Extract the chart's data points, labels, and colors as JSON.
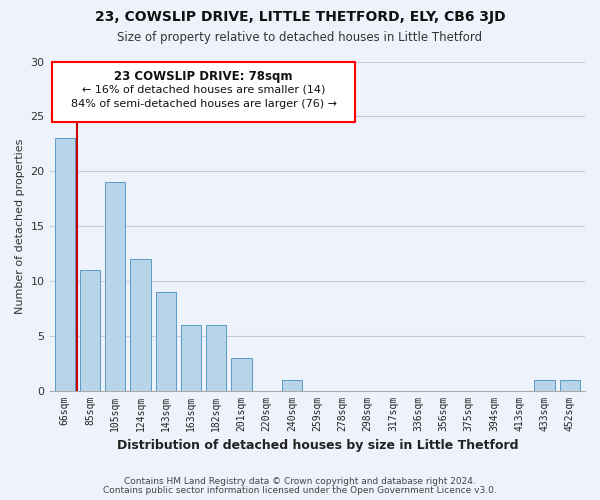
{
  "title": "23, COWSLIP DRIVE, LITTLE THETFORD, ELY, CB6 3JD",
  "subtitle": "Size of property relative to detached houses in Little Thetford",
  "xlabel": "Distribution of detached houses by size in Little Thetford",
  "ylabel": "Number of detached properties",
  "footnote1": "Contains HM Land Registry data © Crown copyright and database right 2024.",
  "footnote2": "Contains public sector information licensed under the Open Government Licence v3.0.",
  "bar_labels": [
    "66sqm",
    "85sqm",
    "105sqm",
    "124sqm",
    "143sqm",
    "163sqm",
    "182sqm",
    "201sqm",
    "220sqm",
    "240sqm",
    "259sqm",
    "278sqm",
    "298sqm",
    "317sqm",
    "336sqm",
    "356sqm",
    "375sqm",
    "394sqm",
    "413sqm",
    "433sqm",
    "452sqm"
  ],
  "bar_values": [
    23,
    11,
    19,
    12,
    9,
    6,
    6,
    3,
    0,
    1,
    0,
    0,
    0,
    0,
    0,
    0,
    0,
    0,
    0,
    1,
    1
  ],
  "bar_color": "#b8d4e8",
  "bar_edge_color": "#5a9bc4",
  "highlight_line_color": "#CC0000",
  "ylim": [
    0,
    30
  ],
  "yticks": [
    0,
    5,
    10,
    15,
    20,
    25,
    30
  ],
  "annotation_title": "23 COWSLIP DRIVE: 78sqm",
  "annotation_line1": "← 16% of detached houses are smaller (14)",
  "annotation_line2": "84% of semi-detached houses are larger (76) →",
  "bg_color": "#eef2fb",
  "grid_color": "#c0cce0"
}
